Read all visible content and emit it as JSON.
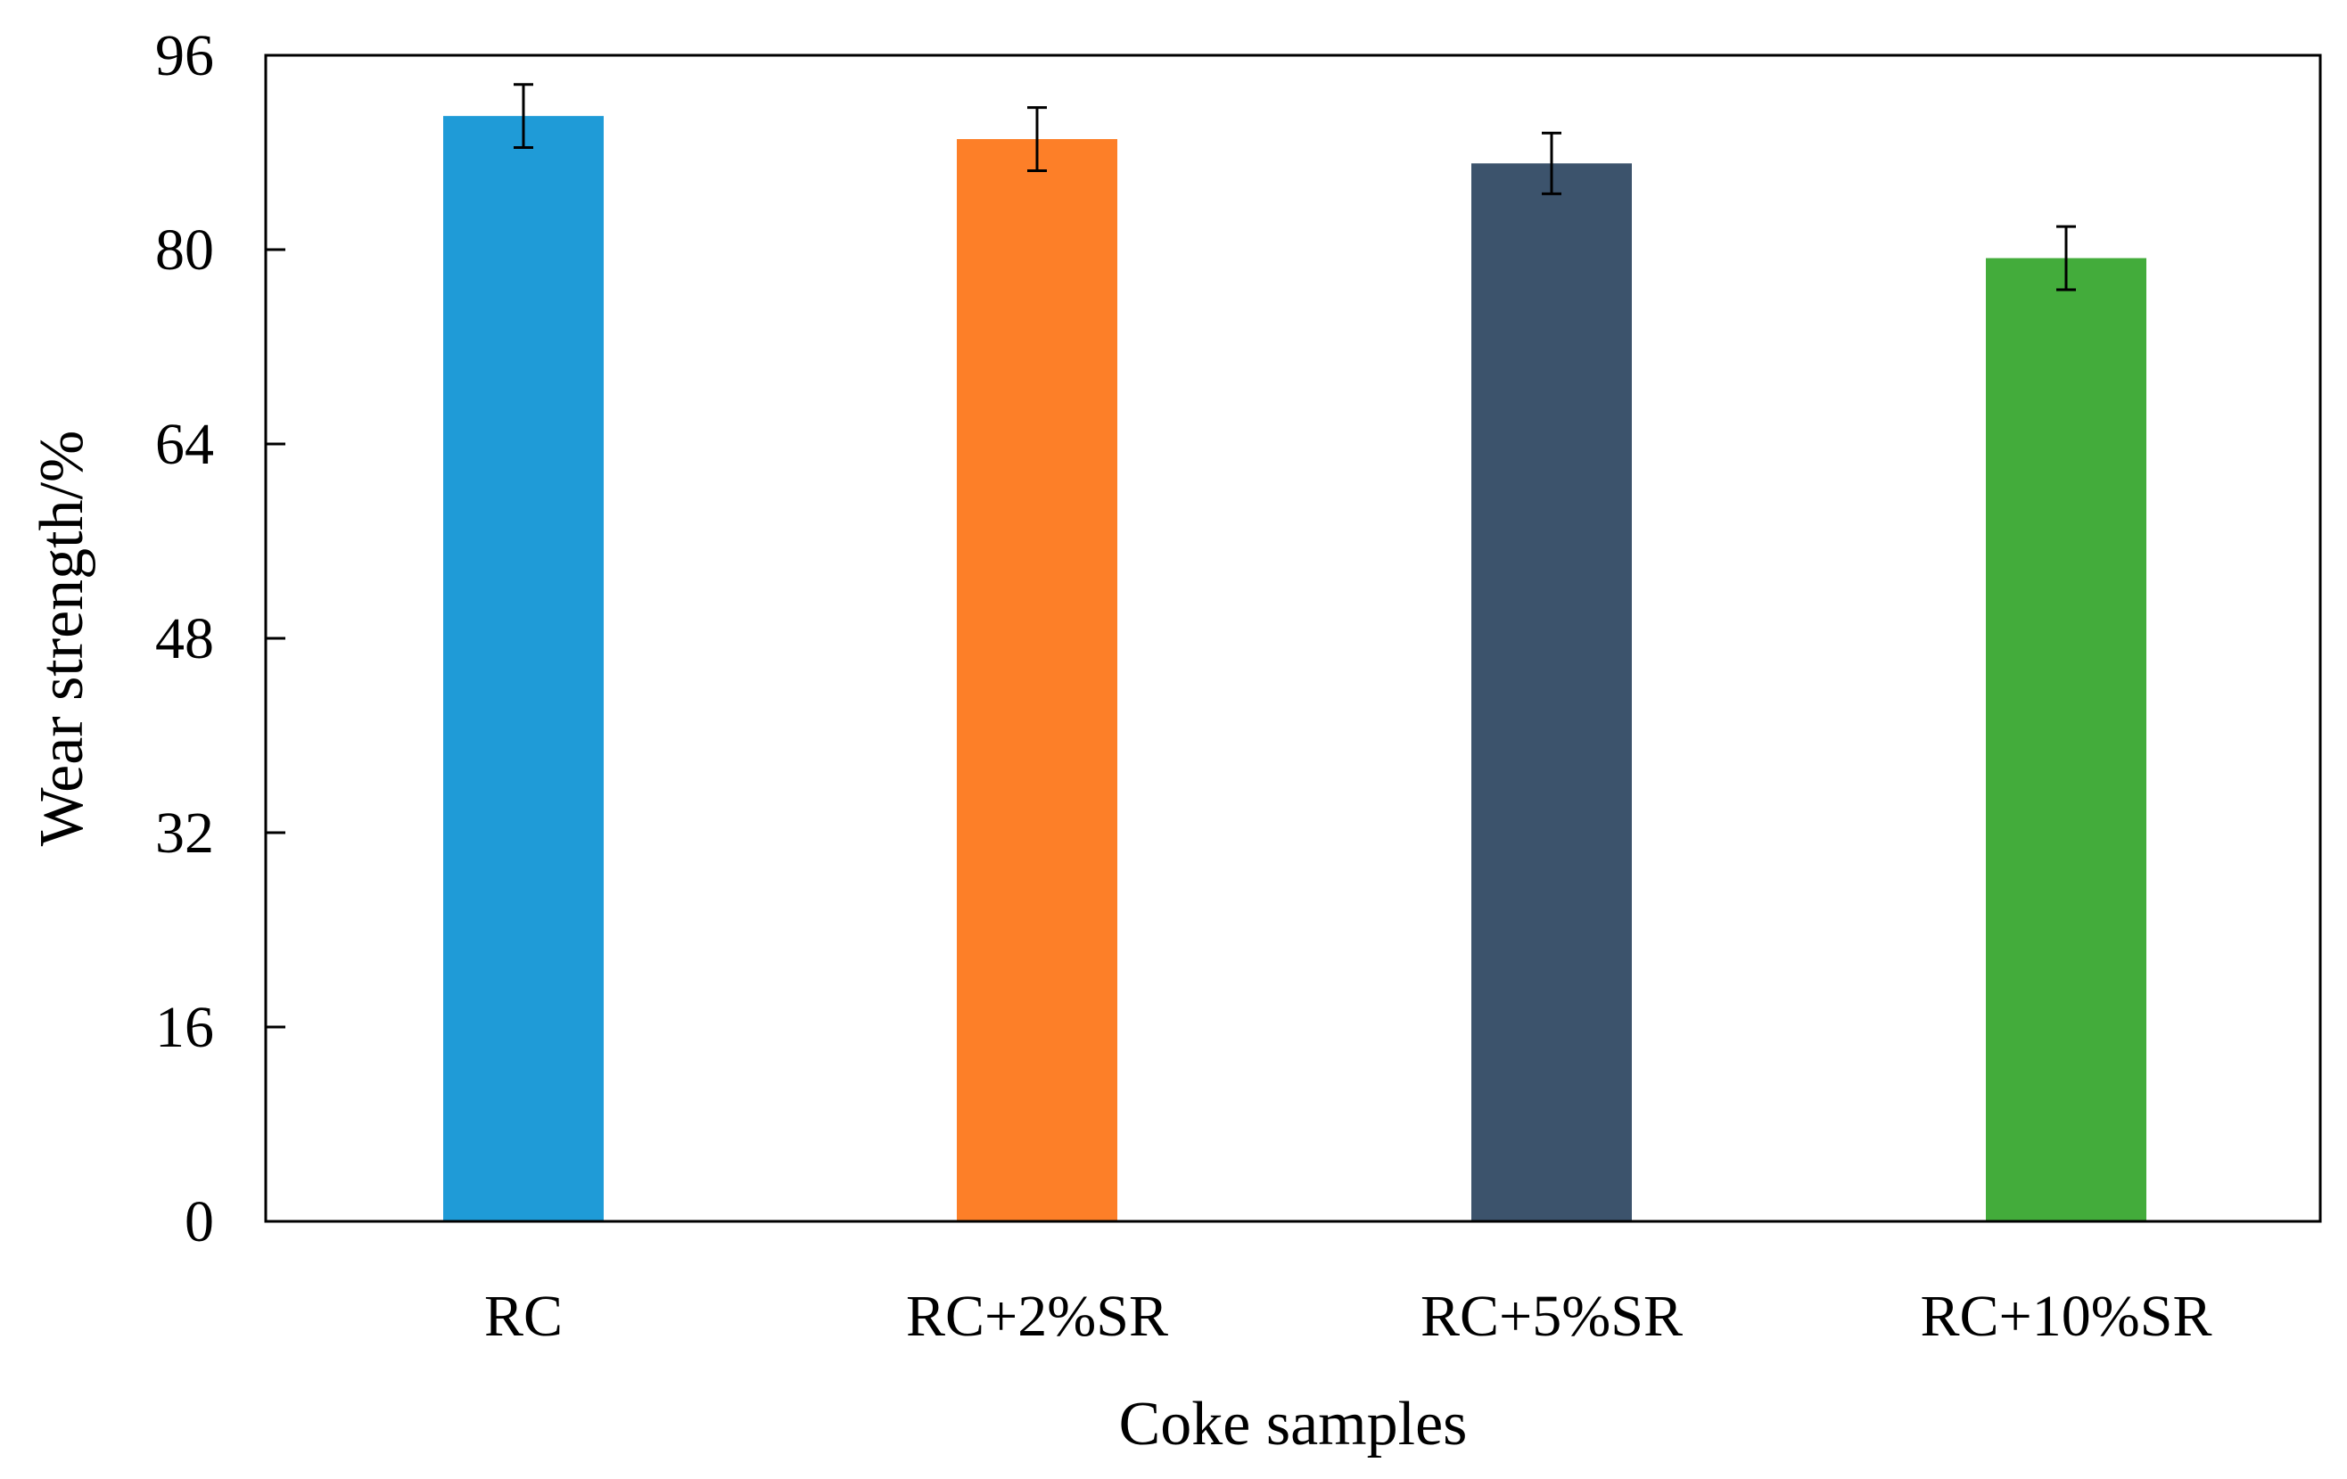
{
  "chart_data": {
    "type": "bar",
    "title": "",
    "xlabel": "Coke samples",
    "ylabel": "Wear strength/%",
    "ylim": [
      0,
      96
    ],
    "yticks": [
      0,
      16,
      32,
      48,
      64,
      80,
      96
    ],
    "ytick_labels": [
      "0",
      "16",
      "32",
      "48",
      "64",
      "80",
      "96"
    ],
    "categories": [
      "RC",
      "RC+2%SR",
      "RC+5%SR",
      "RC+10%SR"
    ],
    "values": [
      91.0,
      89.1,
      87.1,
      79.3
    ],
    "errors": [
      2.6,
      2.6,
      2.5,
      2.6
    ],
    "colors": [
      "#1f9bd7",
      "#fd7f28",
      "#3c536c",
      "#43ac3b"
    ],
    "grid": false,
    "legend": "none"
  }
}
